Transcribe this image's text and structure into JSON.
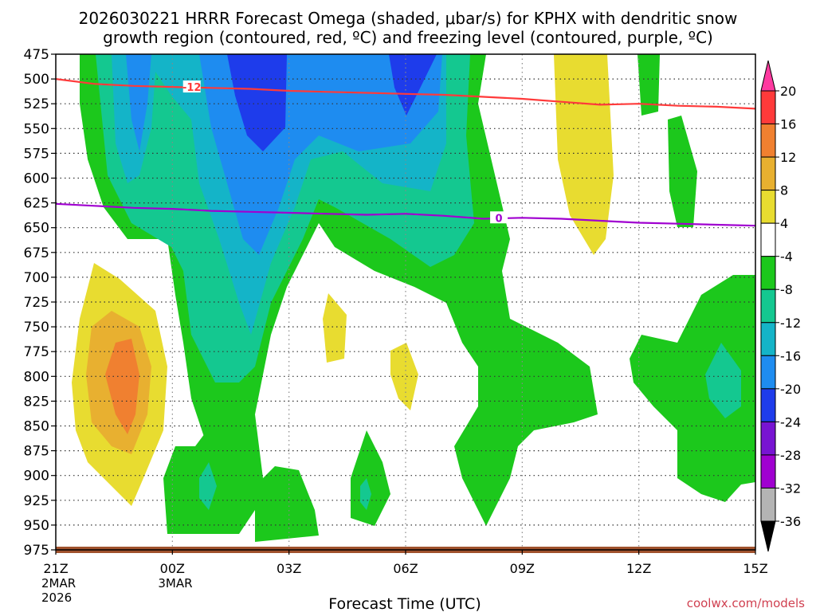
{
  "chart_data": {
    "type": "contour",
    "title_line1": "2026030221 HRRR Forecast Omega (shaded, μbar/s) for KPHX with dendritic snow",
    "title_line2": "growth region (contoured, red, ºC) and freezing level (contoured, purple, ºC)",
    "xlabel": "Forecast Time (UTC)",
    "watermark": "coolwx.com/models",
    "x_ticks": [
      {
        "hour": 0,
        "label": "21Z",
        "sub1": "2MAR",
        "sub2": "2026"
      },
      {
        "hour": 3,
        "label": "00Z",
        "sub1": "3MAR",
        "sub2": ""
      },
      {
        "hour": 6,
        "label": "03Z",
        "sub1": "",
        "sub2": ""
      },
      {
        "hour": 9,
        "label": "06Z",
        "sub1": "",
        "sub2": ""
      },
      {
        "hour": 12,
        "label": "09Z",
        "sub1": "",
        "sub2": ""
      },
      {
        "hour": 15,
        "label": "12Z",
        "sub1": "",
        "sub2": ""
      },
      {
        "hour": 18,
        "label": "15Z",
        "sub1": "",
        "sub2": ""
      }
    ],
    "x_range_hours": [
      0,
      18
    ],
    "y_levels_hpa": [
      475,
      500,
      525,
      550,
      575,
      600,
      625,
      650,
      675,
      700,
      725,
      750,
      775,
      800,
      825,
      850,
      875,
      900,
      925,
      950,
      975
    ],
    "y_range_hpa": [
      475,
      975
    ],
    "contours": [
      {
        "name": "dendritic-growth-isotherm",
        "color": "#ff3a3a",
        "label": "-12",
        "label_at": [
          3.5,
          508
        ],
        "points": [
          [
            0,
            500
          ],
          [
            1,
            505
          ],
          [
            2,
            507
          ],
          [
            3,
            508
          ],
          [
            4,
            509
          ],
          [
            5,
            510
          ],
          [
            6,
            512
          ],
          [
            7,
            513
          ],
          [
            8,
            514
          ],
          [
            9,
            515
          ],
          [
            10,
            516
          ],
          [
            11,
            518
          ],
          [
            12,
            520
          ],
          [
            13,
            523
          ],
          [
            14,
            526
          ],
          [
            15,
            525
          ],
          [
            16,
            527
          ],
          [
            17,
            528
          ],
          [
            18,
            530
          ]
        ]
      },
      {
        "name": "freezing-level-isotherm",
        "color": "#a000d0",
        "label": "0",
        "label_at": [
          11.4,
          640
        ],
        "points": [
          [
            0,
            626
          ],
          [
            1,
            628
          ],
          [
            2,
            630
          ],
          [
            3,
            631
          ],
          [
            4,
            633
          ],
          [
            5,
            634
          ],
          [
            6,
            635
          ],
          [
            7,
            636
          ],
          [
            8,
            637
          ],
          [
            9,
            636
          ],
          [
            10,
            638
          ],
          [
            11,
            641
          ],
          [
            12,
            640
          ],
          [
            13,
            641
          ],
          [
            14,
            643
          ],
          [
            15,
            645
          ],
          [
            16,
            646
          ],
          [
            17,
            647
          ],
          [
            18,
            648
          ]
        ]
      }
    ],
    "colorbar": {
      "ticks": [
        20,
        16,
        12,
        8,
        4,
        -4,
        -8,
        -12,
        -16,
        -20,
        -24,
        -28,
        -32,
        -36
      ],
      "colors": [
        "#ff3aa0",
        "#ff3a3a",
        "#f08030",
        "#e8b030",
        "#e8dc30",
        "#ffffff",
        "#1cc81c",
        "#14c890",
        "#14b4c8",
        "#1e8cf0",
        "#1e3ceb",
        "#7814d2",
        "#a000d0",
        "#b4b4b4",
        "#000000"
      ]
    }
  }
}
